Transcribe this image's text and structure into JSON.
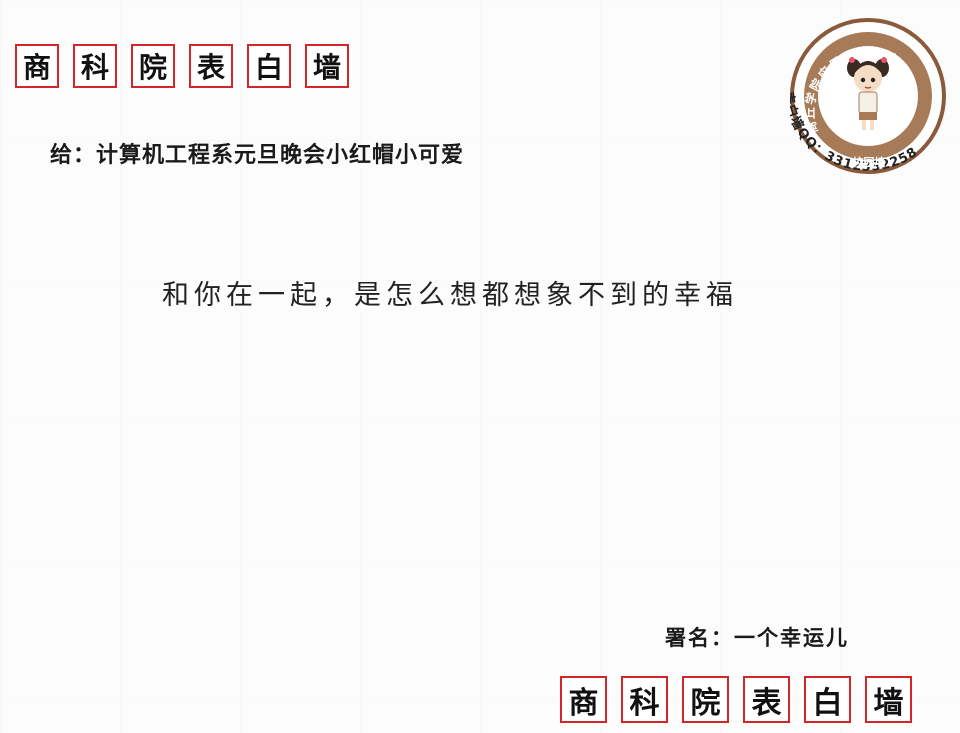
{
  "header_top": {
    "chars": [
      "商",
      "科",
      "院",
      "表",
      "白",
      "墙"
    ]
  },
  "header_bottom": {
    "chars": [
      "商",
      "科",
      "院",
      "表",
      "白",
      "墙"
    ]
  },
  "recipient": "给：计算机工程系元旦晚会小红帽小可爱",
  "message": "和你在一起，是怎么想都想象不到的幸福",
  "signature": "署名：一个幸运儿",
  "stamp": {
    "ring_text": "商丘学院应用科技学院",
    "caption": "校园墙",
    "qq_line": "表白墙QQ：3312332258",
    "ring_color": "#8a5a3b",
    "inner_color": "#a77a58"
  },
  "accent_color": "#d3262b"
}
